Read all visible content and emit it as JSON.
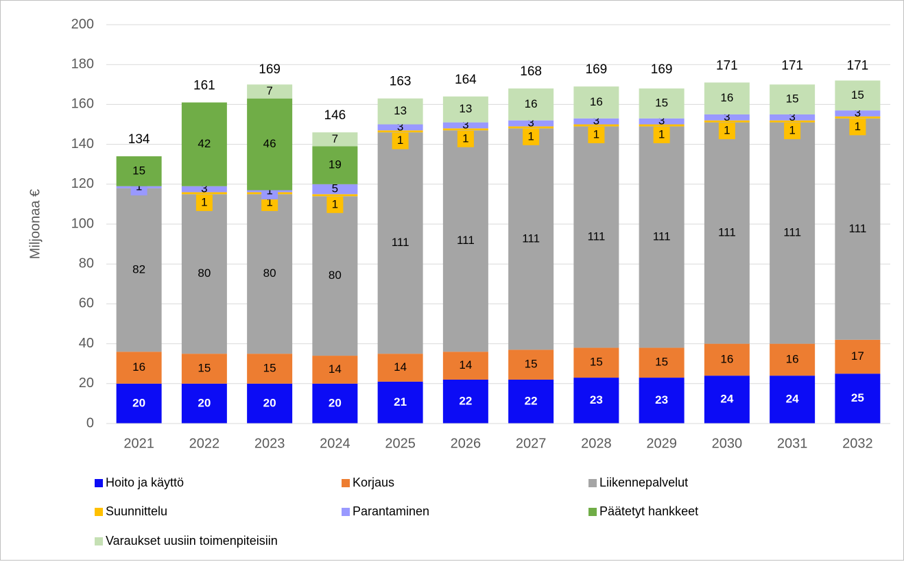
{
  "chart_data": {
    "type": "stacked-bar",
    "y_label": "Miljoonaa €",
    "categories": [
      "2021",
      "2022",
      "2023",
      "2024",
      "2025",
      "2026",
      "2027",
      "2028",
      "2029",
      "2030",
      "2031",
      "2032"
    ],
    "series": [
      {
        "name": "Hoito ja käyttö",
        "color": "#0c0cf5",
        "values": [
          20,
          20,
          20,
          20,
          21,
          22,
          22,
          23,
          23,
          24,
          24,
          25
        ]
      },
      {
        "name": "Korjaus",
        "color": "#ed7d31",
        "values": [
          16,
          15,
          15,
          14,
          14,
          14,
          15,
          15,
          15,
          16,
          16,
          17
        ]
      },
      {
        "name": "Liikennepalvelut",
        "color": "#a5a5a5",
        "values": [
          82,
          80,
          80,
          80,
          111,
          111,
          111,
          111,
          111,
          111,
          111,
          111
        ]
      },
      {
        "name": "Suunnittelu",
        "color": "#ffc000",
        "values": [
          null,
          1,
          1,
          1,
          1,
          1,
          1,
          1,
          1,
          1,
          1,
          1
        ]
      },
      {
        "name": "Parantaminen",
        "color": "#9999ff",
        "values": [
          1,
          3,
          1,
          5,
          3,
          3,
          3,
          3,
          3,
          3,
          3,
          3
        ]
      },
      {
        "name": "Päätetyt hankkeet",
        "color": "#70ad47",
        "values": [
          15,
          42,
          46,
          19,
          null,
          null,
          null,
          null,
          null,
          null,
          null,
          null
        ]
      },
      {
        "name": "Varaukset uusiin toimenpiteisiin",
        "color": "#c5e0b4",
        "values": [
          null,
          null,
          7,
          7,
          13,
          13,
          16,
          16,
          15,
          16,
          15,
          15
        ]
      }
    ],
    "totals": [
      134,
      161,
      169,
      146,
      163,
      164,
      168,
      169,
      169,
      171,
      171,
      171
    ],
    "ylim": [
      0,
      200
    ],
    "yticks": [
      0,
      20,
      40,
      60,
      80,
      100,
      120,
      140,
      160,
      180,
      200
    ],
    "grid": true
  }
}
